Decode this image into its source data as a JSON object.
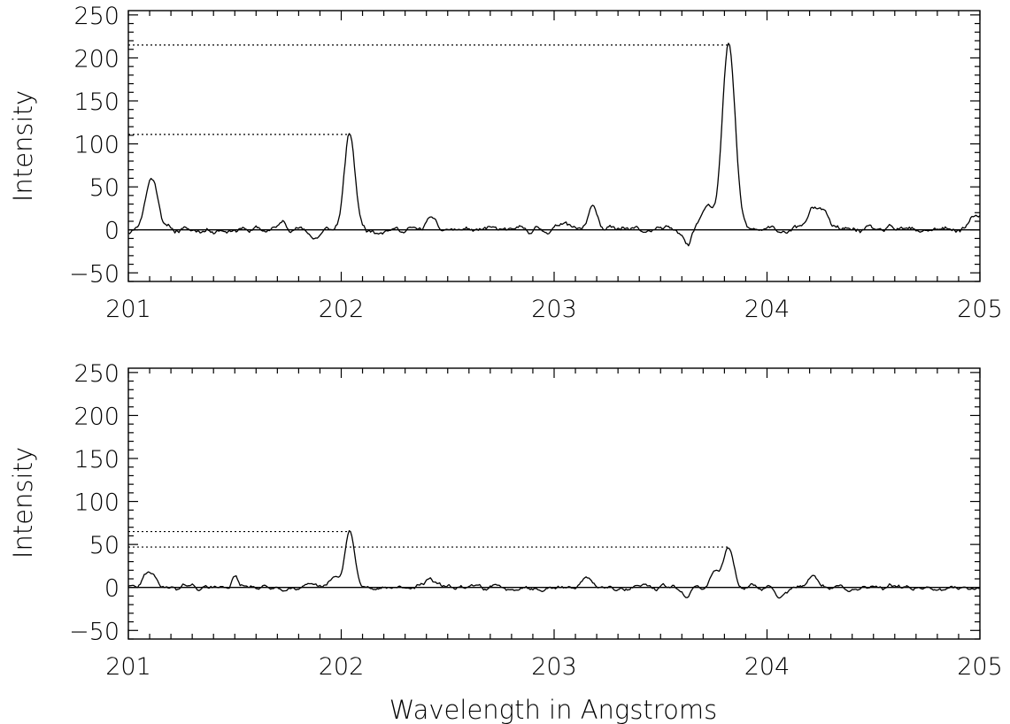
{
  "chart_data": [
    {
      "type": "line",
      "title": "",
      "xlabel": "",
      "ylabel": "Intensity",
      "xlim": [
        201,
        205
      ],
      "ylim": [
        -60,
        255
      ],
      "x_ticks": [
        201,
        202,
        203,
        204,
        205
      ],
      "y_ticks": [
        -50,
        0,
        50,
        100,
        150,
        200,
        250
      ],
      "x_tick_labels": [
        "201",
        "202",
        "203",
        "204",
        "205"
      ],
      "y_tick_labels": [
        "−50",
        "0",
        "50",
        "100",
        "150",
        "200",
        "250"
      ],
      "zero_line": 0,
      "grid": false,
      "reference_levels": [
        {
          "y": 111,
          "x_end": 202.04
        },
        {
          "y": 215,
          "x_end": 203.82
        }
      ],
      "peaks": [
        {
          "x": 201.11,
          "y": 60,
          "w": 0.03
        },
        {
          "x": 202.04,
          "y": 111,
          "w": 0.025
        },
        {
          "x": 203.18,
          "y": 30,
          "w": 0.02
        },
        {
          "x": 203.72,
          "y": 30,
          "w": 0.03
        },
        {
          "x": 203.82,
          "y": 215,
          "w": 0.03
        },
        {
          "x": 204.22,
          "y": 24,
          "w": 0.03
        },
        {
          "x": 204.27,
          "y": 18,
          "w": 0.02
        },
        {
          "x": 202.42,
          "y": 14,
          "w": 0.02
        },
        {
          "x": 203.05,
          "y": 12,
          "w": 0.02
        },
        {
          "x": 201.73,
          "y": 10,
          "w": 0.02
        },
        {
          "x": 204.98,
          "y": 14,
          "w": 0.03
        },
        {
          "x": 203.63,
          "y": -16,
          "w": 0.015
        },
        {
          "x": 201.88,
          "y": -10,
          "w": 0.02
        }
      ],
      "noise_amplitude": 5
    },
    {
      "type": "line",
      "title": "",
      "xlabel": "Wavelength in Angstroms",
      "ylabel": "Intensity",
      "xlim": [
        201,
        205
      ],
      "ylim": [
        -60,
        255
      ],
      "x_ticks": [
        201,
        202,
        203,
        204,
        205
      ],
      "y_ticks": [
        -50,
        0,
        50,
        100,
        150,
        200,
        250
      ],
      "x_tick_labels": [
        "201",
        "202",
        "203",
        "204",
        "205"
      ],
      "y_tick_labels": [
        "−50",
        "0",
        "50",
        "100",
        "150",
        "200",
        "250"
      ],
      "zero_line": 0,
      "grid": false,
      "reference_levels": [
        {
          "y": 65,
          "x_end": 202.04
        },
        {
          "y": 47,
          "x_end": 203.82
        }
      ],
      "peaks": [
        {
          "x": 201.1,
          "y": 20,
          "w": 0.025
        },
        {
          "x": 202.04,
          "y": 65,
          "w": 0.022
        },
        {
          "x": 201.97,
          "y": 12,
          "w": 0.02
        },
        {
          "x": 203.82,
          "y": 47,
          "w": 0.022
        },
        {
          "x": 203.76,
          "y": 20,
          "w": 0.02
        },
        {
          "x": 203.15,
          "y": 12,
          "w": 0.02
        },
        {
          "x": 202.42,
          "y": 12,
          "w": 0.02
        },
        {
          "x": 201.5,
          "y": 12,
          "w": 0.015
        },
        {
          "x": 204.22,
          "y": 10,
          "w": 0.02
        },
        {
          "x": 203.62,
          "y": -12,
          "w": 0.015
        },
        {
          "x": 204.06,
          "y": -10,
          "w": 0.02
        }
      ],
      "noise_amplitude": 4
    }
  ]
}
